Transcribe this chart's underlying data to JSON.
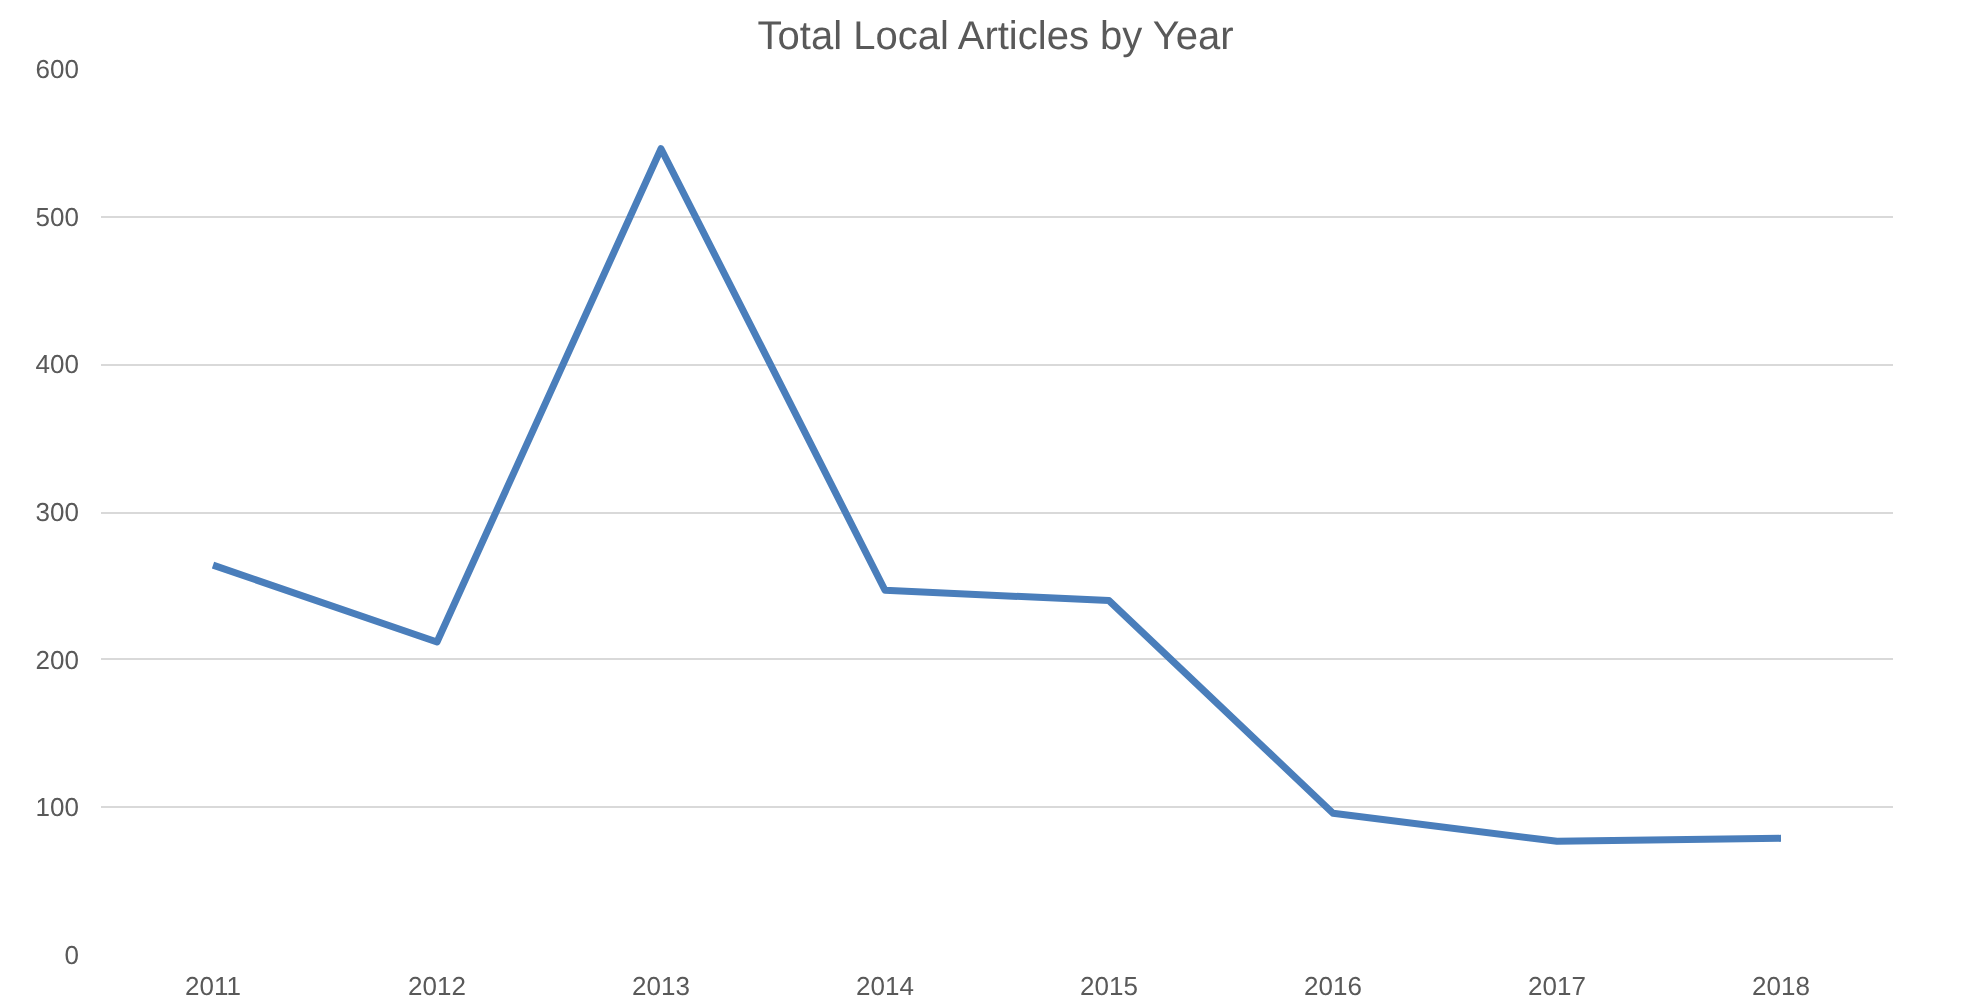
{
  "chart_data": {
    "type": "line",
    "title": "Total Local Articles by Year",
    "categories": [
      "2011",
      "2012",
      "2013",
      "2014",
      "2015",
      "2016",
      "2017",
      "2018"
    ],
    "series": [
      {
        "color": "#4a7ebb",
        "values": [
          264,
          212,
          546,
          247,
          240,
          96,
          77,
          79
        ]
      }
    ],
    "ylim": [
      0,
      600
    ],
    "yticks": [
      0,
      100,
      200,
      300,
      400,
      500,
      600
    ],
    "grid": "y",
    "marker": "none",
    "line_style": "solid"
  }
}
